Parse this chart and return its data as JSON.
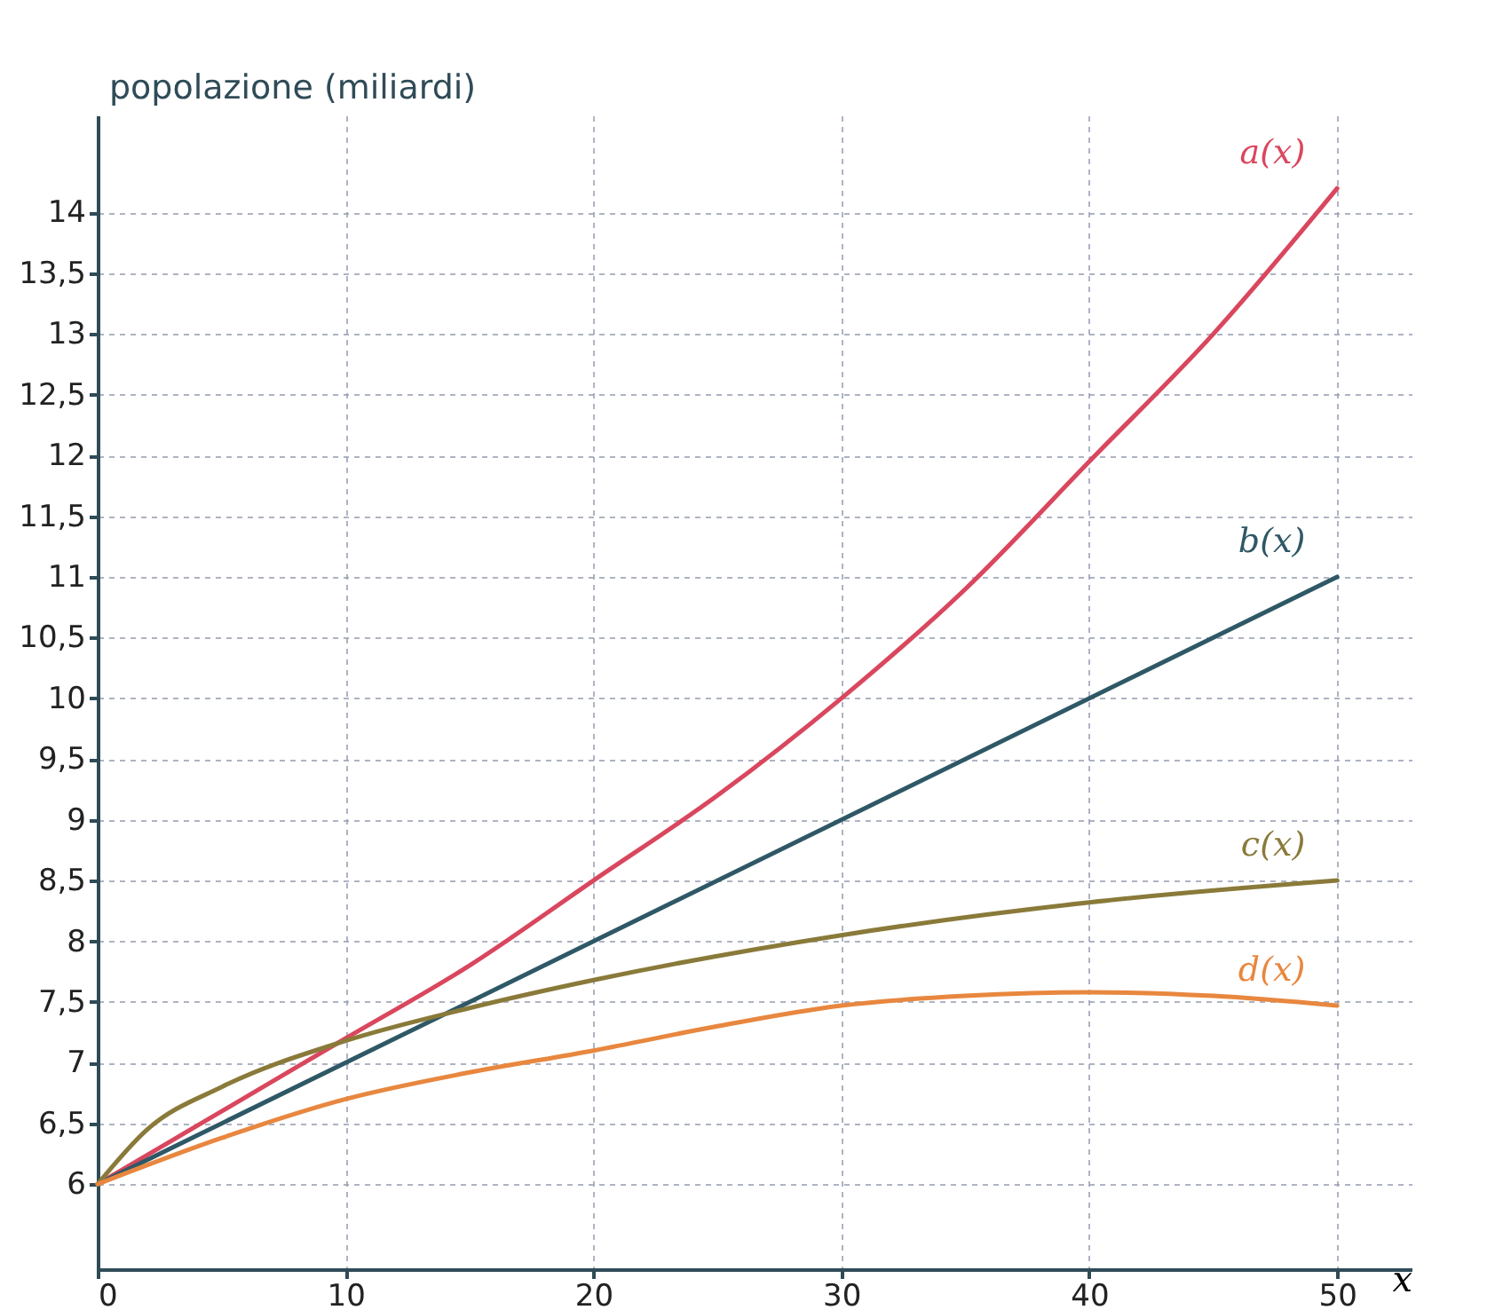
{
  "chart_data": {
    "type": "line",
    "xlabel": "x",
    "ylabel": "popolazione (miliardi)",
    "xlim": [
      0,
      53
    ],
    "ylim": [
      5.3,
      14.8
    ],
    "xticks": [
      0,
      10,
      20,
      30,
      40,
      50
    ],
    "yticks": [
      6,
      {
        "value": 6.5,
        "label": "6,5"
      },
      7,
      {
        "value": 7.5,
        "label": "7,5"
      },
      8,
      {
        "value": 8.5,
        "label": "8,5"
      },
      9,
      {
        "value": 9.5,
        "label": "9,5"
      },
      10,
      {
        "value": 10.5,
        "label": "10,5"
      },
      11,
      {
        "value": 11.5,
        "label": "11,5"
      },
      12,
      {
        "value": 12.5,
        "label": "12,5"
      },
      13,
      {
        "value": 13.5,
        "label": "13,5"
      },
      14
    ],
    "grid": true,
    "line_style": "solid",
    "series": [
      {
        "name": "a(x)",
        "color": "#d9475e",
        "x": [
          0,
          5,
          10,
          15,
          20,
          25,
          30,
          35,
          40,
          45,
          50
        ],
        "values": [
          6,
          6.6,
          7.2,
          7.8,
          8.5,
          9.2,
          10.0,
          10.9,
          11.95,
          13.0,
          14.2
        ]
      },
      {
        "name": "b(x)",
        "color": "#2f5866",
        "x": [
          0,
          50
        ],
        "values": [
          6,
          11
        ]
      },
      {
        "name": "c(x)",
        "color": "#8a7a3a",
        "x": [
          0,
          2,
          5,
          10,
          15,
          20,
          30,
          40,
          50
        ],
        "values": [
          6,
          6.45,
          6.8,
          7.18,
          7.45,
          7.68,
          8.05,
          8.32,
          8.5
        ]
      },
      {
        "name": "d(x)",
        "color": "#e8873f",
        "x": [
          0,
          5,
          10,
          15,
          20,
          25,
          30,
          35,
          40,
          45,
          50
        ],
        "values": [
          6,
          6.38,
          6.7,
          6.92,
          7.1,
          7.3,
          7.47,
          7.55,
          7.58,
          7.55,
          7.47
        ]
      }
    ]
  }
}
